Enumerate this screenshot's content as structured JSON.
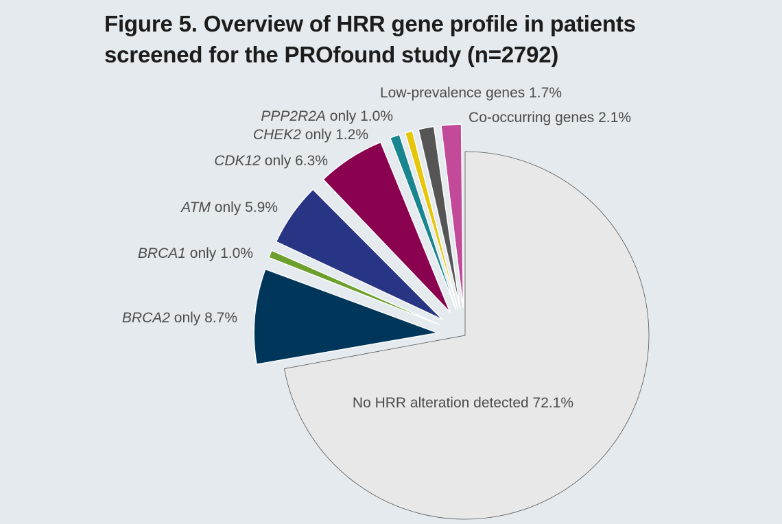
{
  "figure": {
    "title_line1": "Figure 5. Overview of HRR gene profile in patients",
    "title_line2": "screened for the PROfound study (n=2792)"
  },
  "chart_data": {
    "type": "pie",
    "title": "Figure 5. Overview of HRR gene profile in patients screened for the PROfound study (n=2792)",
    "unit": "%",
    "slices": [
      {
        "gene": "",
        "rest": "No HRR alteration detected",
        "pct": "72.1%",
        "value": 72.1,
        "color": "#e8e8e8",
        "exploded": false
      },
      {
        "gene": "BRCA2",
        "rest": " only",
        "pct": "8.7%",
        "value": 8.7,
        "color": "#00365a",
        "exploded": true
      },
      {
        "gene": "BRCA1",
        "rest": " only",
        "pct": "1.0%",
        "value": 1.0,
        "color": "#6d9f2c",
        "exploded": true
      },
      {
        "gene": "ATM",
        "rest": " only",
        "pct": "5.9%",
        "value": 5.9,
        "color": "#283584",
        "exploded": true
      },
      {
        "gene": "CDK12",
        "rest": " only",
        "pct": "6.3%",
        "value": 6.3,
        "color": "#8a024f",
        "exploded": true
      },
      {
        "gene": "CHEK2",
        "rest": " only",
        "pct": "1.2%",
        "value": 1.2,
        "color": "#18858f",
        "exploded": true
      },
      {
        "gene": "PPP2R2A",
        "rest": " only",
        "pct": "1.0%",
        "value": 1.0,
        "color": "#e6c60a",
        "exploded": true
      },
      {
        "gene": "",
        "rest": "Low-prevalence genes",
        "pct": "1.7%",
        "value": 1.7,
        "color": "#555555",
        "exploded": true
      },
      {
        "gene": "",
        "rest": "Co-occurring genes",
        "pct": "2.1%",
        "value": 2.1,
        "color": "#c24a98",
        "exploded": true
      }
    ]
  }
}
